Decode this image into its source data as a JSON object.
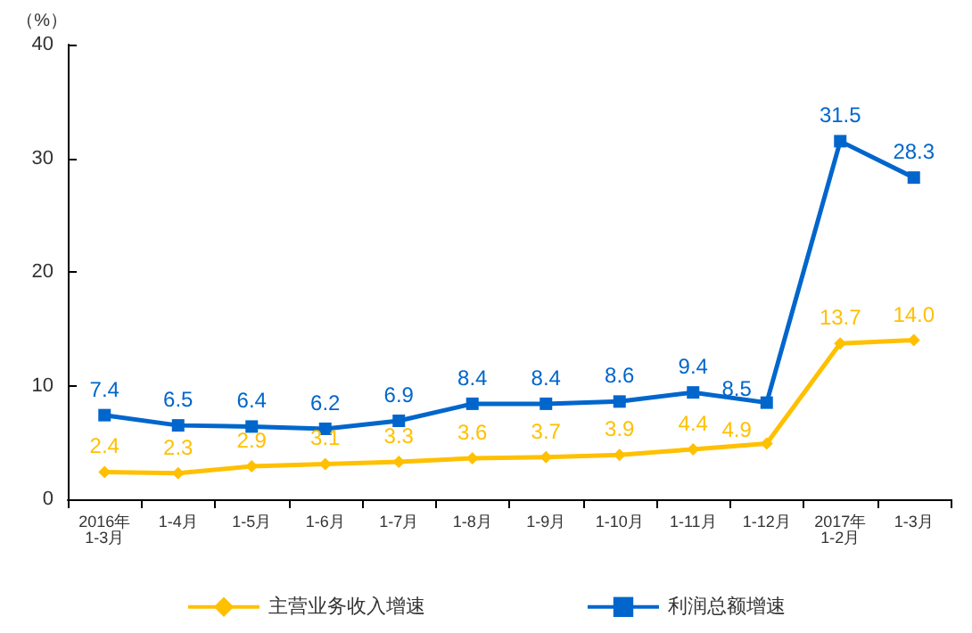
{
  "chart_data": {
    "type": "line",
    "ylabel": "（%）",
    "categories": [
      "2016年\n1-3月",
      "1-4月",
      "1-5月",
      "1-6月",
      "1-7月",
      "1-8月",
      "1-9月",
      "1-10月",
      "1-11月",
      "1-12月",
      "2017年\n1-2月",
      "1-3月"
    ],
    "series": [
      {
        "name": "主营业务收入增速",
        "color": "#ffc000",
        "marker": "diamond",
        "values": [
          2.4,
          2.3,
          2.9,
          3.1,
          3.3,
          3.6,
          3.7,
          3.9,
          4.4,
          4.9,
          13.7,
          14.0
        ],
        "value_labels": [
          "2.4",
          "2.3",
          "2.9",
          "3.1",
          "3.3",
          "3.6",
          "3.7",
          "3.9",
          "4.4",
          "4.9",
          "13.7",
          "14.0"
        ]
      },
      {
        "name": "利润总额增速",
        "color": "#0066cc",
        "marker": "square",
        "values": [
          7.4,
          6.5,
          6.4,
          6.2,
          6.9,
          8.4,
          8.4,
          8.6,
          9.4,
          8.5,
          31.5,
          28.3
        ]
      }
    ],
    "ylim": [
      0,
      40
    ],
    "yticks": [
      0,
      10,
      20,
      30,
      40
    ],
    "grid": false,
    "legend": "bottom",
    "data_labels": true
  }
}
